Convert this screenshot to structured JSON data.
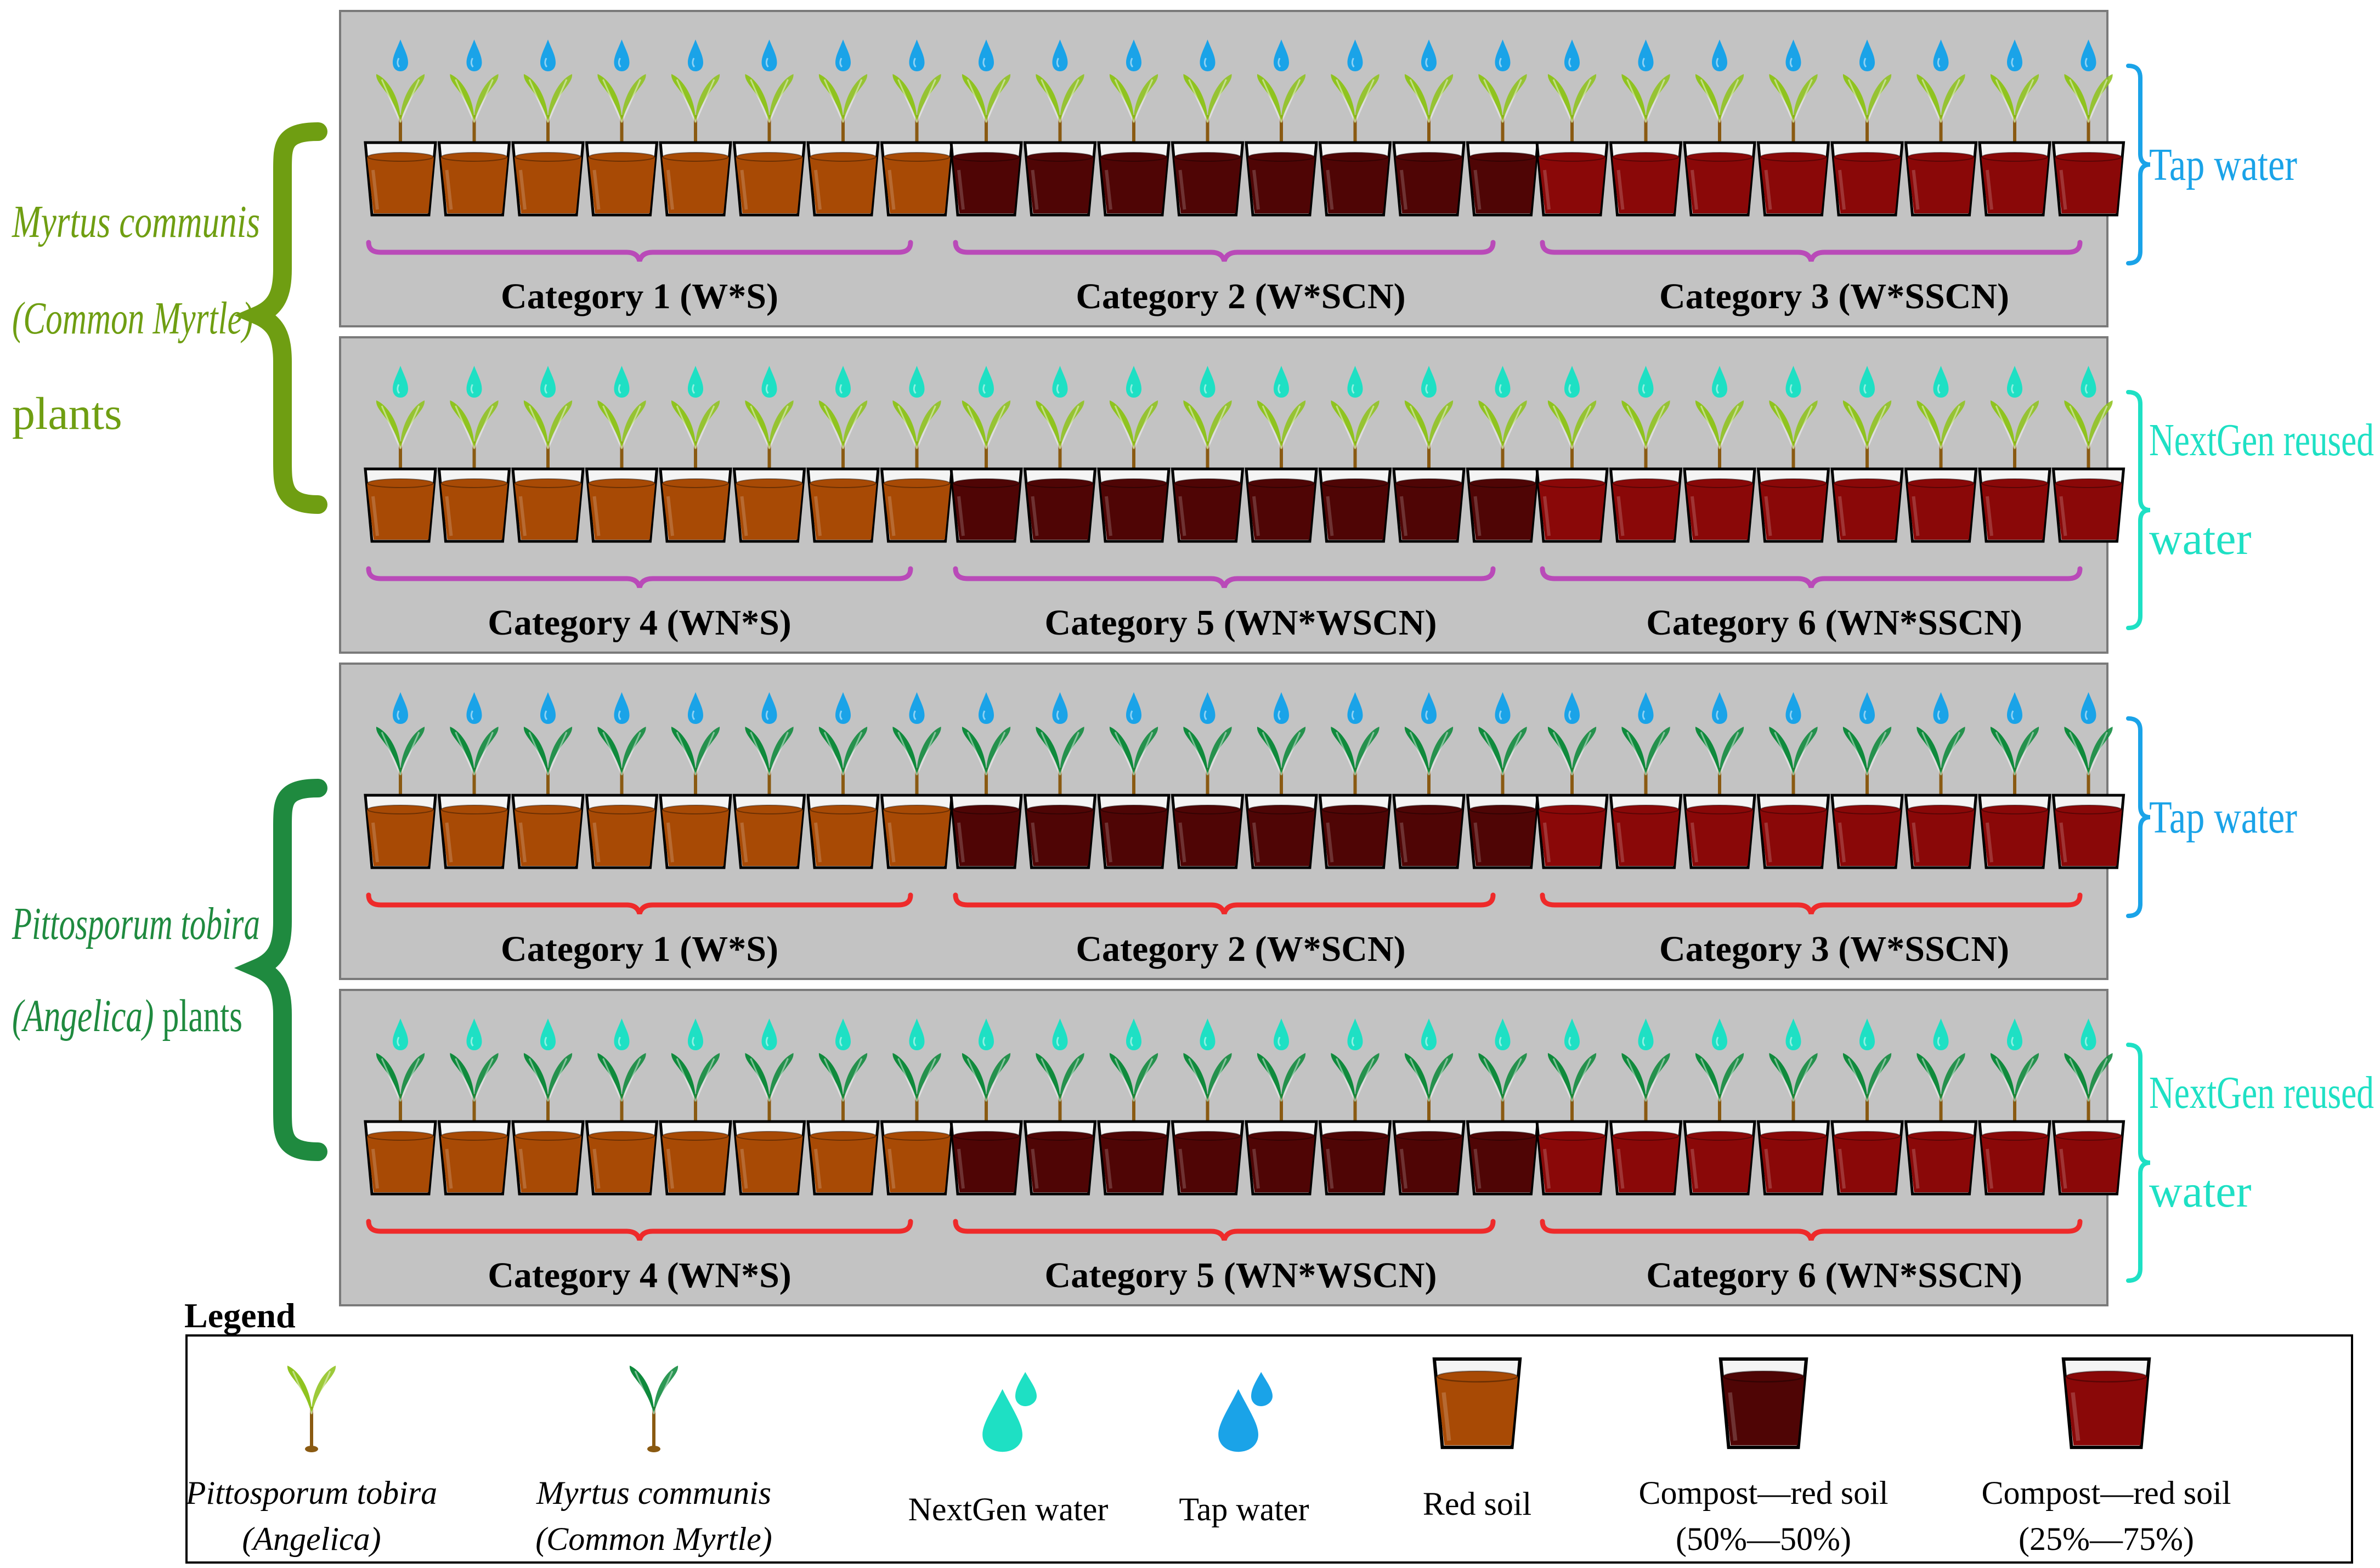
{
  "colors": {
    "panel_bg": "#c3c3c3",
    "panel_border": "#7a7a7a",
    "myrtle_label": "#6f9e12",
    "angelica_label": "#1f8a3f",
    "tap_water": "#1aa3e8",
    "nextgen_water": "#1ee0c4",
    "bracket_myrtle": "#b94ab8",
    "bracket_angelica": "#ee2a2a",
    "red_soil": "#a84a05",
    "compost_50": "#4f0505",
    "compost_25": "#8a0808",
    "leaf_light": "#8fc31f",
    "leaf_dark": "#0f8a3c",
    "stem": "#8a5a12"
  },
  "species": [
    {
      "name_line1": "Myrtus communis",
      "name_line2": "(Common Myrtle)",
      "name_line3": "plants"
    },
    {
      "name_line1": "Pittosporum tobira",
      "name_line2": "(Angelica) plants",
      "name_line3": ""
    }
  ],
  "water_labels": {
    "tap": "Tap water",
    "nextgen_line1": "NextGen reused",
    "nextgen_line2": "water"
  },
  "rows": [
    {
      "species": 0,
      "water": "tap",
      "categories": [
        "Category 1 (W*S)",
        "Category 2 (W*SCN)",
        "Category 3 (W*SSCN)"
      ]
    },
    {
      "species": 0,
      "water": "nextgen",
      "categories": [
        "Category 4 (WN*S)",
        "Category 5 (WN*WSCN)",
        "Category 6 (WN*SSCN)"
      ]
    },
    {
      "species": 1,
      "water": "tap",
      "categories": [
        "Category 1 (W*S)",
        "Category 2 (W*SCN)",
        "Category 3 (W*SSCN)"
      ]
    },
    {
      "species": 1,
      "water": "nextgen",
      "categories": [
        "Category 4 (WN*S)",
        "Category 5 (WN*WSCN)",
        "Category 6 (WN*SSCN)"
      ]
    }
  ],
  "legend": {
    "title": "Legend",
    "items": [
      {
        "icon": "angelica-plant-icon",
        "line1": "Pittosporum tobira",
        "line2": "(Angelica)",
        "italic": true
      },
      {
        "icon": "myrtle-plant-icon",
        "line1": "Myrtus communis",
        "line2": "(Common Myrtle)",
        "italic": true
      },
      {
        "icon": "nextgen-water-drop-icon",
        "line1": "NextGen water",
        "line2": "",
        "italic": false
      },
      {
        "icon": "tap-water-drop-icon",
        "line1": "Tap water",
        "line2": "",
        "italic": false
      },
      {
        "icon": "red-soil-pot-icon",
        "line1": "Red soil",
        "line2": "",
        "italic": false
      },
      {
        "icon": "compost-50-pot-icon",
        "line1": "Compost—red soil",
        "line2": "(50%—50%)",
        "italic": false
      },
      {
        "icon": "compost-25-pot-icon",
        "line1": "Compost—red soil",
        "line2": "(25%—75%)",
        "italic": false
      }
    ]
  }
}
